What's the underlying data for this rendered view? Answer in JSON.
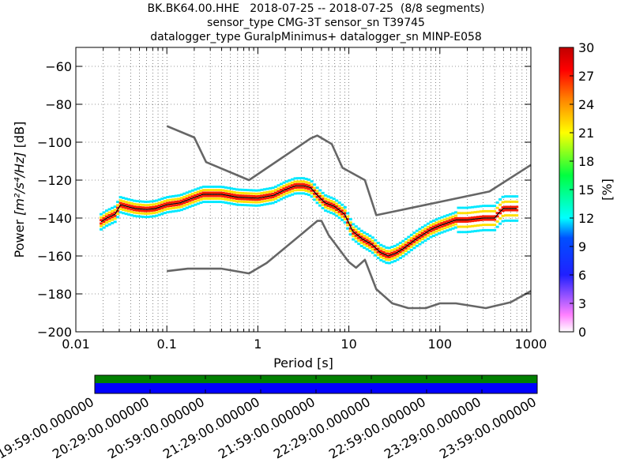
{
  "titles": {
    "line1": "BK.BK64.00.HHE   2018-07-25 -- 2018-07-25  (8/8 segments)",
    "line2": "sensor_type CMG-3T sensor_sn T39745",
    "line3": "datalogger_type GuralpMinimus+ datalogger_sn MINP-E058"
  },
  "chart_data": {
    "type": "heatmap",
    "title": "BK.BK64.00.HHE   2018-07-25 -- 2018-07-25  (8/8 segments)",
    "xlabel": "Period [s]",
    "ylabel_prefix": "Power",
    "ylabel_units": "[m²/s⁴/Hz]",
    "ylabel_suffix": "[dB]",
    "x_scale": "log",
    "xlim": [
      0.01,
      1000
    ],
    "ylim": [
      -200,
      -50
    ],
    "x_ticks": [
      0.01,
      0.1,
      1,
      10,
      100,
      1000
    ],
    "x_tick_labels": [
      "0.01",
      "0.1",
      "1",
      "10",
      "100",
      "1000"
    ],
    "y_ticks": [
      -200,
      -180,
      -160,
      -140,
      -120,
      -100,
      -80,
      -60
    ],
    "y_tick_labels": [
      "−200",
      "−180",
      "−160",
      "−140",
      "−120",
      "−100",
      "−80",
      "−60"
    ],
    "grid": true,
    "colorbar": {
      "label": "[%]",
      "min": 0,
      "max": 30,
      "ticks": [
        0,
        3,
        6,
        9,
        12,
        15,
        18,
        21,
        24,
        27,
        30
      ],
      "tick_labels": [
        "0",
        "3",
        "6",
        "9",
        "12",
        "15",
        "18",
        "21",
        "24",
        "27",
        "30"
      ]
    },
    "noise_models": [
      {
        "x": [
          0.1,
          0.2,
          0.27,
          0.8,
          3.8,
          4.5,
          6.5,
          8.5,
          15,
          20,
          350,
          1000
        ],
        "y": [
          -91.5,
          -97.5,
          -110.5,
          -120,
          -98,
          -96.5,
          -101,
          -113.5,
          -120,
          -138.5,
          -126,
          -112
        ]
      },
      {
        "x": [
          0.1,
          0.17,
          0.4,
          0.8,
          1.25,
          3,
          4.5,
          5,
          6,
          10,
          12,
          15,
          20,
          30,
          45,
          70,
          100,
          150,
          320,
          600,
          1000
        ],
        "y": [
          -168,
          -166.7,
          -166.7,
          -169.2,
          -163.7,
          -148.6,
          -141.5,
          -141.5,
          -149,
          -163.2,
          -166.2,
          -162,
          -177.5,
          -185,
          -187.5,
          -187.5,
          -185,
          -185,
          -187.5,
          -184.4,
          -178.5
        ]
      }
    ],
    "psd_median": {
      "x": [
        0.019,
        0.022,
        0.027,
        0.031,
        0.037,
        0.045,
        0.06,
        0.075,
        0.1,
        0.14,
        0.18,
        0.25,
        0.4,
        0.6,
        1,
        1.5,
        2,
        2.6,
        3.2,
        3.8,
        4.5,
        5.5,
        7,
        9,
        11,
        14,
        18,
        22,
        27,
        33,
        40,
        55,
        80,
        100,
        150,
        200,
        300,
        400,
        450,
        500,
        700
      ],
      "y": [
        -142,
        -140,
        -138,
        -133,
        -134,
        -135,
        -135.5,
        -135,
        -133,
        -132,
        -130,
        -127.5,
        -127.5,
        -129,
        -129.5,
        -128,
        -125,
        -123,
        -123,
        -124,
        -128,
        -132,
        -134,
        -138,
        -147,
        -151,
        -154,
        -158,
        -160,
        -158.5,
        -156,
        -151,
        -146,
        -144,
        -141,
        -141,
        -140,
        -140,
        -137,
        -135,
        -135
      ]
    },
    "psd_spread_db": 2.5
  },
  "timeline": {
    "tick_labels": [
      "19:59:00.000000",
      "20:29:00.000000",
      "20:59:00.000000",
      "21:29:00.000000",
      "21:59:00.000000",
      "22:29:00.000000",
      "22:59:00.000000",
      "23:29:00.000000",
      "23:59:00.000000"
    ],
    "data_color": "#008000",
    "gap_free_color": "#0000ff"
  }
}
